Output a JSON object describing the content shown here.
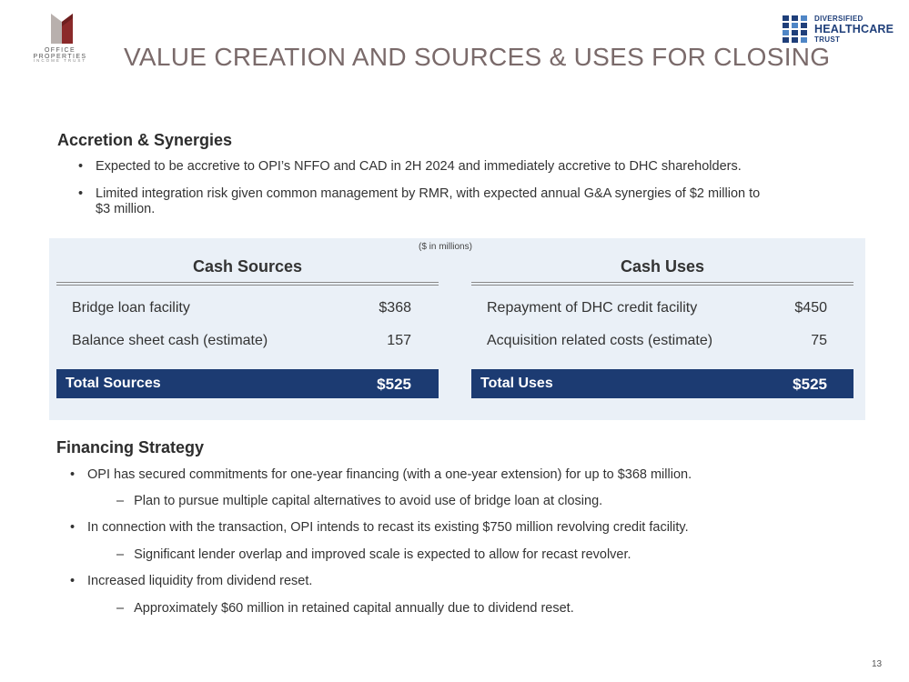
{
  "logos": {
    "opi": {
      "name": "OFFICE PROPERTIES",
      "sub": "INCOME TRUST"
    },
    "dhc": {
      "line1": "DIVERSIFIED",
      "line2": "HEALTHCARE",
      "line3": "TRUST"
    }
  },
  "title": "VALUE CREATION AND SOURCES & USES FOR CLOSING",
  "accretion": {
    "heading": "Accretion & Synergies",
    "bullets": [
      "Expected to be accretive to OPI’s NFFO and CAD in 2H 2024 and immediately accretive to DHC shareholders.",
      "Limited integration risk given common management by RMR, with expected annual G&A synergies of $2 million to",
      "$3 million."
    ]
  },
  "table": {
    "units": "($ in millions)",
    "sources": {
      "heading": "Cash Sources",
      "rows": [
        {
          "label": "Bridge loan facility",
          "value": "$368"
        },
        {
          "label": "Balance sheet cash (estimate)",
          "value": "157"
        }
      ],
      "total_label": "Total Sources",
      "total_value": "$525"
    },
    "uses": {
      "heading": "Cash Uses",
      "rows": [
        {
          "label": "Repayment of DHC credit facility",
          "value": "$450"
        },
        {
          "label": "Acquisition related costs (estimate)",
          "value": "75"
        }
      ],
      "total_label": "Total Uses",
      "total_value": "$525"
    }
  },
  "financing": {
    "heading": "Financing Strategy",
    "items": [
      {
        "bullet": "OPI has secured commitments for one-year financing (with a one-year extension) for up to $368 million.",
        "sub": "Plan to pursue multiple capital alternatives to avoid use of bridge loan at closing."
      },
      {
        "bullet": "In connection with the transaction, OPI intends to recast its existing $750 million revolving credit facility.",
        "sub": "Significant lender overlap and improved scale is expected to allow for recast revolver."
      },
      {
        "bullet": "Increased liquidity from dividend reset.",
        "sub": "Approximately $60 million in retained capital annually due to dividend reset."
      }
    ]
  },
  "page_number": "13",
  "colors": {
    "navy": "#1c3b72",
    "panel": "#eaf0f7",
    "title": "#7a6a6a",
    "opi_red": "#8b2a2a"
  }
}
